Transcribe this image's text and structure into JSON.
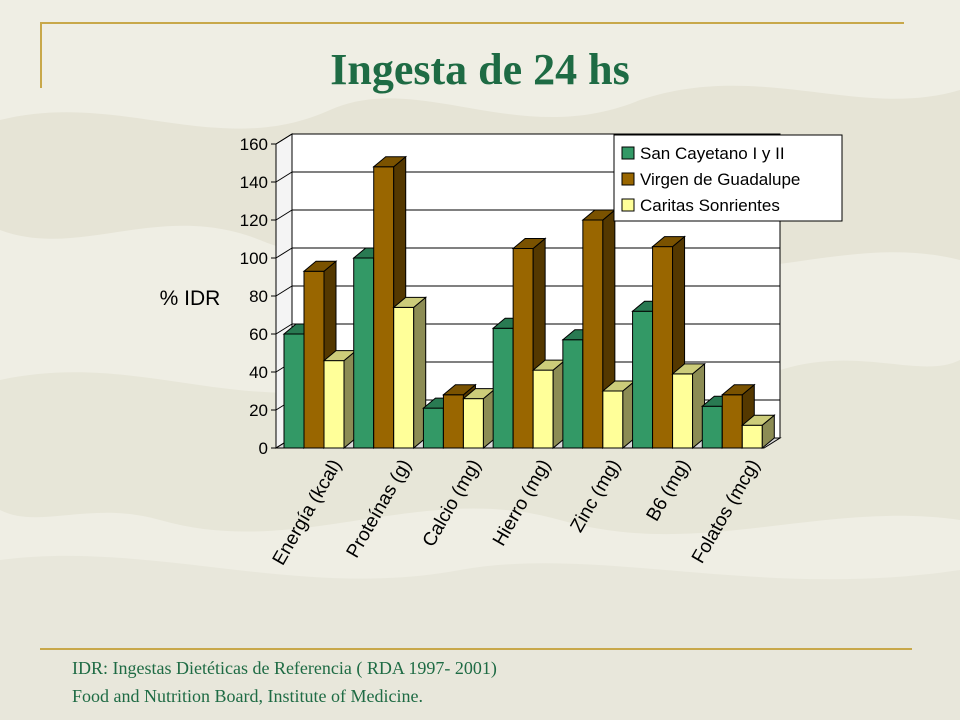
{
  "slide": {
    "title": "Ingesta de 24 hs",
    "footnote_line1": "IDR: Ingestas Dietéticas de Referencia ( RDA 1997- 2001)",
    "footnote_line2": "Food and Nutrition Board, Institute of  Medicine."
  },
  "chart_data": {
    "type": "bar",
    "style": "3d-clustered-column",
    "ylabel": "% IDR",
    "xlabel": "",
    "ylim": [
      0,
      160
    ],
    "yticks": [
      0,
      20,
      40,
      60,
      80,
      100,
      120,
      140,
      160
    ],
    "grid": true,
    "legend_position": "top-right",
    "categories": [
      "Energía (kcal)",
      "Proteínas (g)",
      "Calcio (mg)",
      "Hierro (mg)",
      "Zinc (mg)",
      "B6 (mg)",
      "Folatos (mcg)"
    ],
    "series": [
      {
        "name": "San Cayetano I y II",
        "color": "#339966",
        "values": [
          60,
          100,
          21,
          63,
          57,
          72,
          22
        ]
      },
      {
        "name": "Virgen de Guadalupe",
        "color": "#996600",
        "values": [
          93,
          148,
          28,
          105,
          120,
          106,
          28
        ]
      },
      {
        "name": "Caritas Sonrientes",
        "color": "#ffff99",
        "values": [
          46,
          74,
          26,
          41,
          30,
          39,
          12
        ]
      }
    ]
  }
}
